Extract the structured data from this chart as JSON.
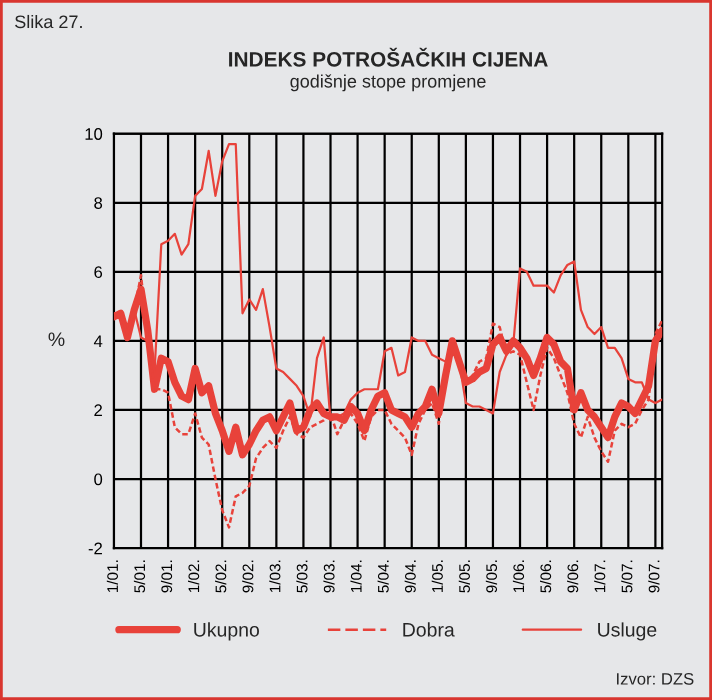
{
  "chart_data": {
    "type": "line",
    "title": "INDEKS POTROŠAČKIH CIJENA",
    "subtitle": "godišnje stope promjene",
    "ylabel": "%",
    "annotations": [
      "Slika 27.",
      "Izvor: DZS"
    ],
    "x": [
      "2001-01",
      "2001-02",
      "2001-03",
      "2001-04",
      "2001-05",
      "2001-06",
      "2001-07",
      "2001-08",
      "2001-09",
      "2001-10",
      "2001-11",
      "2001-12",
      "2002-01",
      "2002-02",
      "2002-03",
      "2002-04",
      "2002-05",
      "2002-06",
      "2002-07",
      "2002-08",
      "2002-09",
      "2002-10",
      "2002-11",
      "2002-12",
      "2003-01",
      "2003-02",
      "2003-03",
      "2003-04",
      "2003-05",
      "2003-06",
      "2003-07",
      "2003-08",
      "2003-09",
      "2003-10",
      "2003-11",
      "2003-12",
      "2004-01",
      "2004-02",
      "2004-03",
      "2004-04",
      "2004-05",
      "2004-06",
      "2004-07",
      "2004-08",
      "2004-09",
      "2004-10",
      "2004-11",
      "2004-12",
      "2005-01",
      "2005-02",
      "2005-03",
      "2005-04",
      "2005-05",
      "2005-06",
      "2005-07",
      "2005-08",
      "2005-09",
      "2005-10",
      "2005-11",
      "2005-12",
      "2006-01",
      "2006-02",
      "2006-03",
      "2006-04",
      "2006-05",
      "2006-06",
      "2006-07",
      "2006-08",
      "2006-09",
      "2006-10",
      "2006-11",
      "2006-12",
      "2007-01",
      "2007-02",
      "2007-03",
      "2007-04",
      "2007-05",
      "2007-06",
      "2007-07",
      "2007-08",
      "2007-09",
      "2007-10"
    ],
    "series": [
      {
        "name": "Ukupno",
        "color": "#e8423a",
        "line_style": "solid",
        "values": [
          4.7,
          4.8,
          4.1,
          4.9,
          5.5,
          4.3,
          2.6,
          3.5,
          3.4,
          2.8,
          2.4,
          2.3,
          3.2,
          2.5,
          2.7,
          1.9,
          1.4,
          0.8,
          1.5,
          0.7,
          1.0,
          1.4,
          1.7,
          1.8,
          1.4,
          1.8,
          2.2,
          1.4,
          1.5,
          2.0,
          2.2,
          1.9,
          1.8,
          1.8,
          1.7,
          2.1,
          1.9,
          1.4,
          2.0,
          2.4,
          2.5,
          2.0,
          1.9,
          1.8,
          1.5,
          1.9,
          2.1,
          2.6,
          1.9,
          3.0,
          4.0,
          3.4,
          2.8,
          2.9,
          3.1,
          3.2,
          3.9,
          4.1,
          3.7,
          4.0,
          3.8,
          3.5,
          3.0,
          3.5,
          4.1,
          3.9,
          3.4,
          3.2,
          2.0,
          2.5,
          2.0,
          1.8,
          1.5,
          1.2,
          1.8,
          2.2,
          2.1,
          1.9,
          2.3,
          2.7,
          4.0,
          4.3
        ]
      },
      {
        "name": "Dobra",
        "color": "#e8423a",
        "line_style": "dashed",
        "values": [
          4.8,
          4.8,
          4.2,
          4.9,
          5.9,
          4.1,
          2.6,
          2.6,
          2.5,
          1.5,
          1.3,
          1.3,
          1.9,
          1.2,
          1.0,
          0.0,
          -0.9,
          -1.4,
          -0.5,
          -0.4,
          -0.2,
          0.6,
          0.9,
          1.1,
          0.9,
          1.4,
          1.8,
          1.3,
          1.2,
          1.5,
          1.6,
          1.7,
          1.9,
          1.3,
          1.7,
          1.9,
          1.6,
          1.1,
          1.8,
          2.0,
          2.0,
          1.6,
          1.4,
          1.2,
          0.7,
          1.6,
          2.0,
          2.2,
          1.6,
          3.2,
          4.0,
          3.3,
          2.8,
          3.0,
          3.4,
          3.5,
          4.5,
          4.4,
          3.6,
          3.7,
          3.6,
          2.8,
          2.0,
          3.0,
          3.8,
          3.5,
          3.0,
          2.5,
          1.6,
          1.2,
          1.8,
          1.2,
          0.8,
          0.5,
          1.4,
          1.6,
          1.5,
          1.6,
          2.0,
          2.3,
          4.2,
          4.6
        ]
      },
      {
        "name": "Usluge",
        "color": "#e8423a",
        "line_style": "solid",
        "values": [
          4.8,
          4.8,
          4.2,
          4.9,
          4.1,
          4.0,
          3.1,
          6.8,
          6.9,
          7.1,
          6.5,
          6.8,
          8.2,
          8.4,
          9.5,
          8.2,
          9.2,
          9.7,
          9.7,
          4.8,
          5.2,
          4.9,
          5.5,
          4.4,
          3.2,
          3.1,
          2.9,
          2.7,
          2.4,
          1.8,
          3.5,
          4.1,
          1.7,
          1.8,
          1.9,
          2.3,
          2.5,
          2.6,
          2.6,
          2.6,
          3.7,
          3.8,
          3.0,
          3.1,
          4.1,
          4.0,
          4.0,
          3.6,
          3.5,
          3.4,
          3.8,
          3.4,
          2.2,
          2.1,
          2.1,
          2.0,
          1.9,
          3.1,
          3.6,
          3.9,
          6.1,
          6.0,
          5.6,
          5.6,
          5.6,
          5.4,
          5.9,
          6.2,
          6.3,
          4.9,
          4.4,
          4.2,
          4.4,
          3.8,
          3.8,
          3.5,
          2.9,
          2.8,
          2.8,
          2.3,
          2.2,
          2.3
        ]
      }
    ],
    "xlim": [
      "2001-01",
      "2007-10"
    ],
    "xticks": [
      {
        "value": "2001-01",
        "label": "1/01."
      },
      {
        "value": "2001-05",
        "label": "5/01."
      },
      {
        "value": "2001-09",
        "label": "9/01."
      },
      {
        "value": "2002-01",
        "label": "1/02."
      },
      {
        "value": "2002-05",
        "label": "5/02."
      },
      {
        "value": "2002-09",
        "label": "9/02."
      },
      {
        "value": "2003-01",
        "label": "1/03."
      },
      {
        "value": "2003-05",
        "label": "5/03."
      },
      {
        "value": "2003-09",
        "label": "9/03."
      },
      {
        "value": "2004-01",
        "label": "1/04."
      },
      {
        "value": "2004-05",
        "label": "5/04."
      },
      {
        "value": "2004-09",
        "label": "9/04."
      },
      {
        "value": "2005-01",
        "label": "1/05."
      },
      {
        "value": "2005-05",
        "label": "5/05."
      },
      {
        "value": "2005-09",
        "label": "9/05."
      },
      {
        "value": "2006-01",
        "label": "1/06."
      },
      {
        "value": "2006-05",
        "label": "5/06."
      },
      {
        "value": "2006-09",
        "label": "9/06."
      },
      {
        "value": "2007-01",
        "label": "1/07."
      },
      {
        "value": "2007-05",
        "label": "5/07."
      },
      {
        "value": "2007-09",
        "label": "9/07."
      }
    ],
    "ylim": [
      -2,
      10
    ],
    "yticks": [
      -2,
      0,
      2,
      4,
      6,
      8,
      10
    ],
    "grid": true,
    "legend": "bottom",
    "marker": "none"
  }
}
